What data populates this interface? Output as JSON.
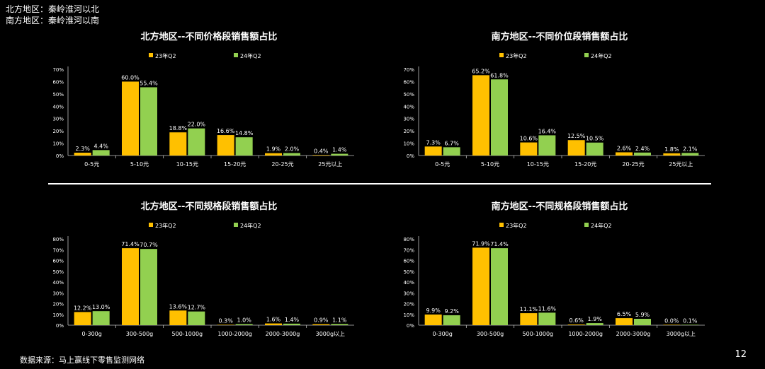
{
  "notes": [
    "北方地区：秦岭淮河以北",
    "南方地区：秦岭淮河以南"
  ],
  "source": "数据来源：马上赢线下零售监测网络",
  "page_number": "12",
  "colors": {
    "series1": "#FFC000",
    "series2": "#92D050",
    "background": "#000000",
    "text": "#FFFFFF",
    "axis": "#BFBFBF"
  },
  "chart_data": [
    {
      "type": "bar",
      "title": "北方地区--不同价格段销售额占比",
      "categories": [
        "0-5元",
        "5-10元",
        "10-15元",
        "15-20元",
        "20-25元",
        "25元以上"
      ],
      "series": [
        {
          "name": "23年Q2",
          "values": [
            2.3,
            60.0,
            18.8,
            16.6,
            1.9,
            0.4
          ],
          "labels": [
            "2.3%",
            "60.0%",
            "18.8%",
            "16.6%",
            "1.9%",
            "0.4%"
          ]
        },
        {
          "name": "24年Q2",
          "values": [
            4.4,
            55.4,
            22.0,
            14.8,
            2.0,
            1.4
          ],
          "labels": [
            "4.4%",
            "55.4%",
            "22.0%",
            "14.8%",
            "2.0%",
            "1.4%"
          ]
        }
      ],
      "ylim": [
        0,
        70
      ],
      "yticks": [
        "0%",
        "10%",
        "20%",
        "30%",
        "40%",
        "50%",
        "60%",
        "70%"
      ],
      "legend": "top"
    },
    {
      "type": "bar",
      "title": "南方地区--不同价位段销售额占比",
      "categories": [
        "0-5元",
        "5-10元",
        "10-15元",
        "15-20元",
        "20-25元",
        "25元以上"
      ],
      "series": [
        {
          "name": "23年Q2",
          "values": [
            7.3,
            65.2,
            10.6,
            12.5,
            2.6,
            1.8
          ],
          "labels": [
            "7.3%",
            "65.2%",
            "10.6%",
            "12.5%",
            "2.6%",
            "1.8%"
          ]
        },
        {
          "name": "24年Q2",
          "values": [
            6.7,
            61.8,
            16.4,
            10.5,
            2.4,
            2.1
          ],
          "labels": [
            "6.7%",
            "61.8%",
            "16.4%",
            "10.5%",
            "2.4%",
            "2.1%"
          ]
        }
      ],
      "ylim": [
        0,
        70
      ],
      "yticks": [
        "0%",
        "10%",
        "20%",
        "30%",
        "40%",
        "50%",
        "60%",
        "70%"
      ],
      "legend": "top"
    },
    {
      "type": "bar",
      "title": "北方地区--不同规格段销售额占比",
      "categories": [
        "0-300g",
        "300-500g",
        "500-1000g",
        "1000-2000g",
        "2000-3000g",
        "3000g以上"
      ],
      "series": [
        {
          "name": "23年Q2",
          "values": [
            12.2,
            71.4,
            13.6,
            0.3,
            1.6,
            0.9
          ],
          "labels": [
            "12.2%",
            "71.4%",
            "13.6%",
            "0.3%",
            "1.6%",
            "0.9%"
          ]
        },
        {
          "name": "24年Q2",
          "values": [
            13.0,
            70.7,
            12.7,
            1.0,
            1.4,
            1.1
          ],
          "labels": [
            "13.0%",
            "70.7%",
            "12.7%",
            "1.0%",
            "1.4%",
            "1.1%"
          ]
        }
      ],
      "ylim": [
        0,
        80
      ],
      "yticks": [
        "0%",
        "10%",
        "20%",
        "30%",
        "40%",
        "50%",
        "60%",
        "70%",
        "80%"
      ],
      "legend": "top"
    },
    {
      "type": "bar",
      "title": "南方地区--不同规格段销售额占比",
      "categories": [
        "0-300g",
        "300-500g",
        "500-1000g",
        "1000-2000g",
        "2000-3000g",
        "3000g以上"
      ],
      "series": [
        {
          "name": "23年Q2",
          "values": [
            9.9,
            71.9,
            11.1,
            0.6,
            6.5,
            0.0
          ],
          "labels": [
            "9.9%",
            "71.9%",
            "11.1%",
            "0.6%",
            "6.5%",
            "0.0%"
          ]
        },
        {
          "name": "24年Q2",
          "values": [
            9.2,
            71.4,
            11.6,
            1.9,
            5.9,
            0.1
          ],
          "labels": [
            "9.2%",
            "71.4%",
            "11.6%",
            "1.9%",
            "5.9%",
            "0.1%"
          ]
        }
      ],
      "ylim": [
        0,
        80
      ],
      "yticks": [
        "0%",
        "10%",
        "20%",
        "30%",
        "40%",
        "50%",
        "60%",
        "70%",
        "80%"
      ],
      "legend": "top"
    }
  ]
}
